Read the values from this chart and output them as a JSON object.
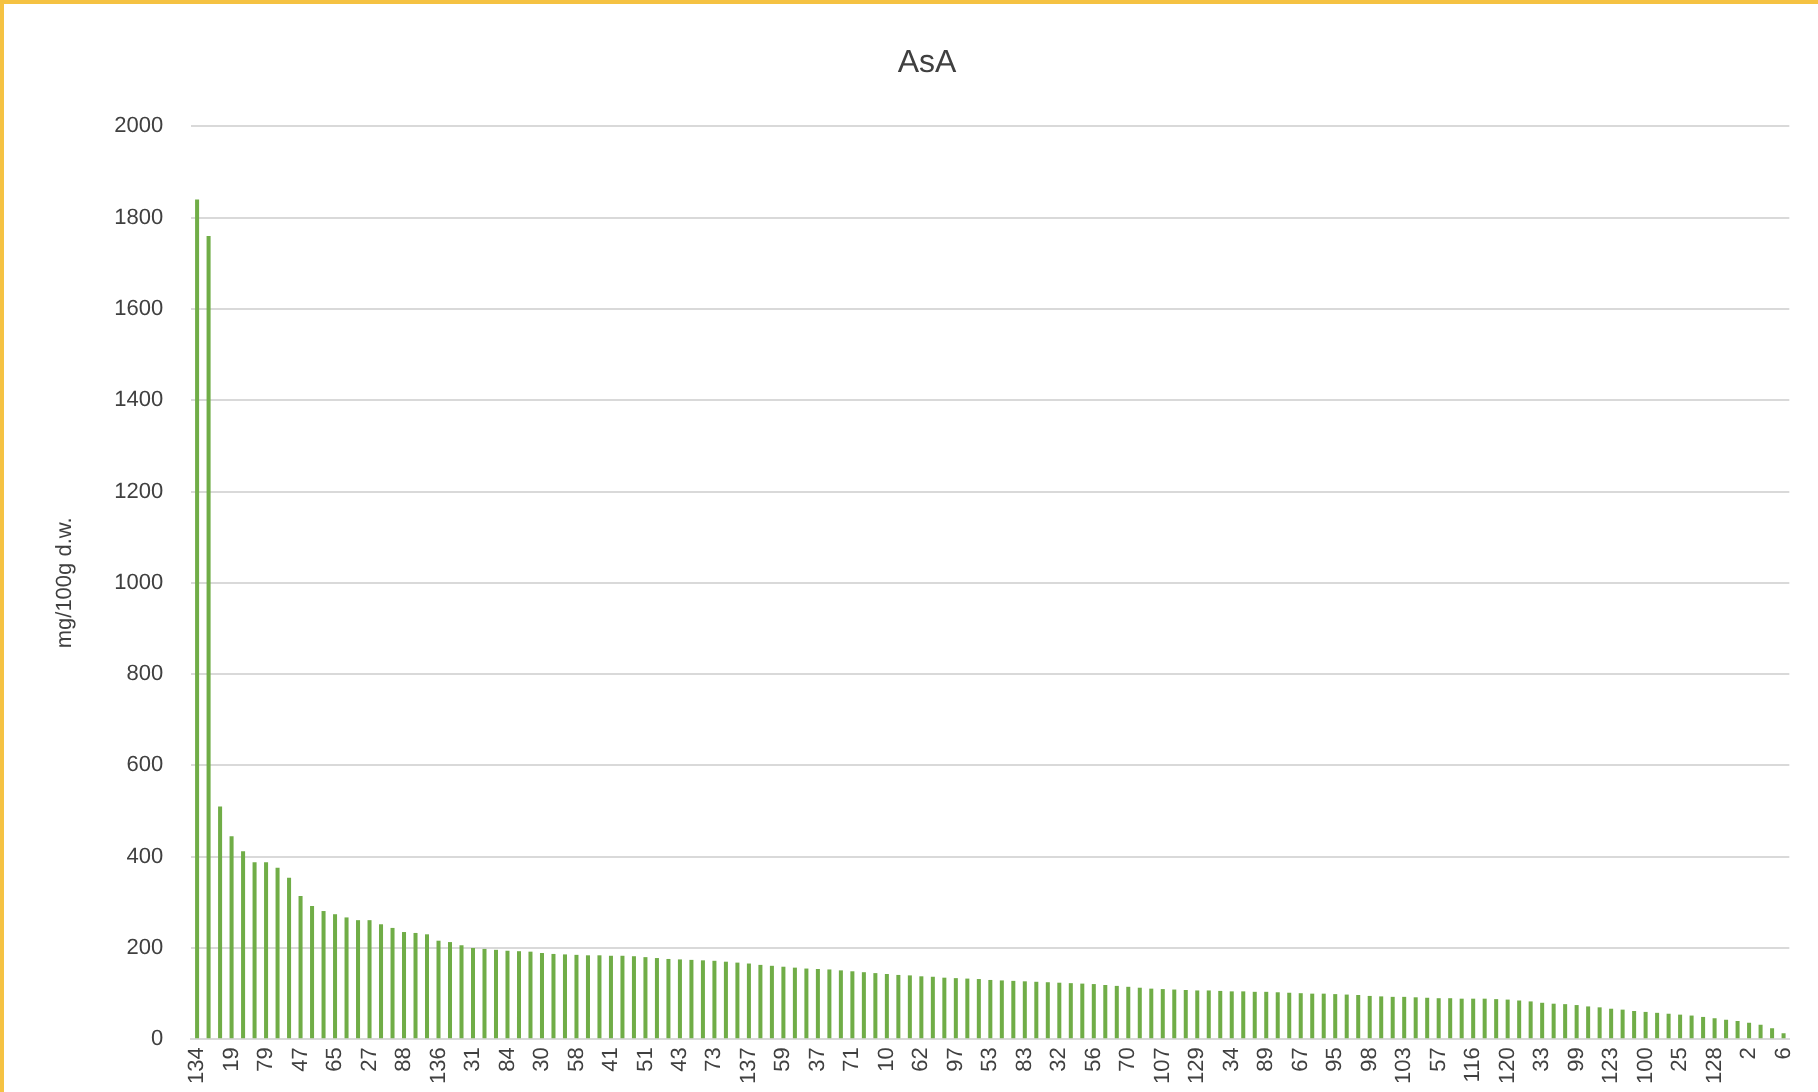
{
  "chart_data": {
    "type": "bar",
    "title": "AsA",
    "ylabel": "mg/100g d.w.",
    "color": "#70ad47",
    "categories": [
      "134",
      null,
      null,
      "19",
      null,
      null,
      "79",
      null,
      null,
      "47",
      null,
      null,
      "65",
      null,
      null,
      "27",
      null,
      null,
      "88",
      null,
      null,
      "136",
      null,
      null,
      "31",
      null,
      null,
      "84",
      null,
      null,
      "30",
      null,
      null,
      "58",
      null,
      null,
      "41",
      null,
      null,
      "51",
      null,
      null,
      "43",
      null,
      null,
      "73",
      null,
      null,
      "137",
      null,
      null,
      "59",
      null,
      null,
      "37",
      null,
      null,
      "71",
      null,
      null,
      "10",
      null,
      null,
      "62",
      null,
      null,
      "97",
      null,
      null,
      "53",
      null,
      null,
      "83",
      null,
      null,
      "32",
      null,
      null,
      "56",
      null,
      null,
      "70",
      null,
      null,
      "107",
      null,
      null,
      "129",
      null,
      null,
      "34",
      null,
      null,
      "89",
      null,
      null,
      "67",
      null,
      null,
      "95",
      null,
      null,
      "98",
      null,
      null,
      "103",
      null,
      null,
      "57",
      null,
      null,
      "116",
      null,
      null,
      "120",
      null,
      null,
      "33",
      null,
      null,
      "99",
      null,
      null,
      "123",
      null,
      null,
      "100",
      null,
      null,
      "25",
      null,
      null,
      "128",
      null,
      null,
      "2",
      null,
      null,
      "6"
    ],
    "values": [
      1840,
      1760,
      510,
      445,
      412,
      388,
      388,
      376,
      354,
      314,
      292,
      281,
      274,
      267,
      261,
      261,
      252,
      244,
      235,
      233,
      230,
      216,
      213,
      206,
      200,
      198,
      196,
      194,
      193,
      192,
      189,
      187,
      186,
      185,
      184,
      184,
      183,
      183,
      182,
      180,
      178,
      176,
      175,
      174,
      173,
      172,
      170,
      168,
      166,
      163,
      161,
      159,
      157,
      155,
      154,
      153,
      151,
      149,
      147,
      145,
      143,
      141,
      140,
      138,
      137,
      135,
      134,
      133,
      132,
      130,
      129,
      128,
      127,
      126,
      125,
      124,
      123,
      122,
      121,
      119,
      117,
      115,
      113,
      111,
      110,
      109,
      108,
      107,
      107,
      106,
      105,
      105,
      104,
      104,
      103,
      102,
      101,
      100,
      100,
      99,
      98,
      97,
      95,
      94,
      93,
      93,
      92,
      91,
      90,
      90,
      89,
      89,
      89,
      88,
      87,
      85,
      83,
      80,
      78,
      77,
      75,
      72,
      70,
      67,
      65,
      62,
      60,
      58,
      56,
      54,
      52,
      49,
      46,
      43,
      40,
      36,
      32,
      24,
      13
    ],
    "ylim": [
      0,
      2000
    ],
    "yticks": [
      0,
      200,
      400,
      600,
      800,
      1000,
      1200,
      1400,
      1600,
      1800,
      2000
    ],
    "grid": "y"
  }
}
